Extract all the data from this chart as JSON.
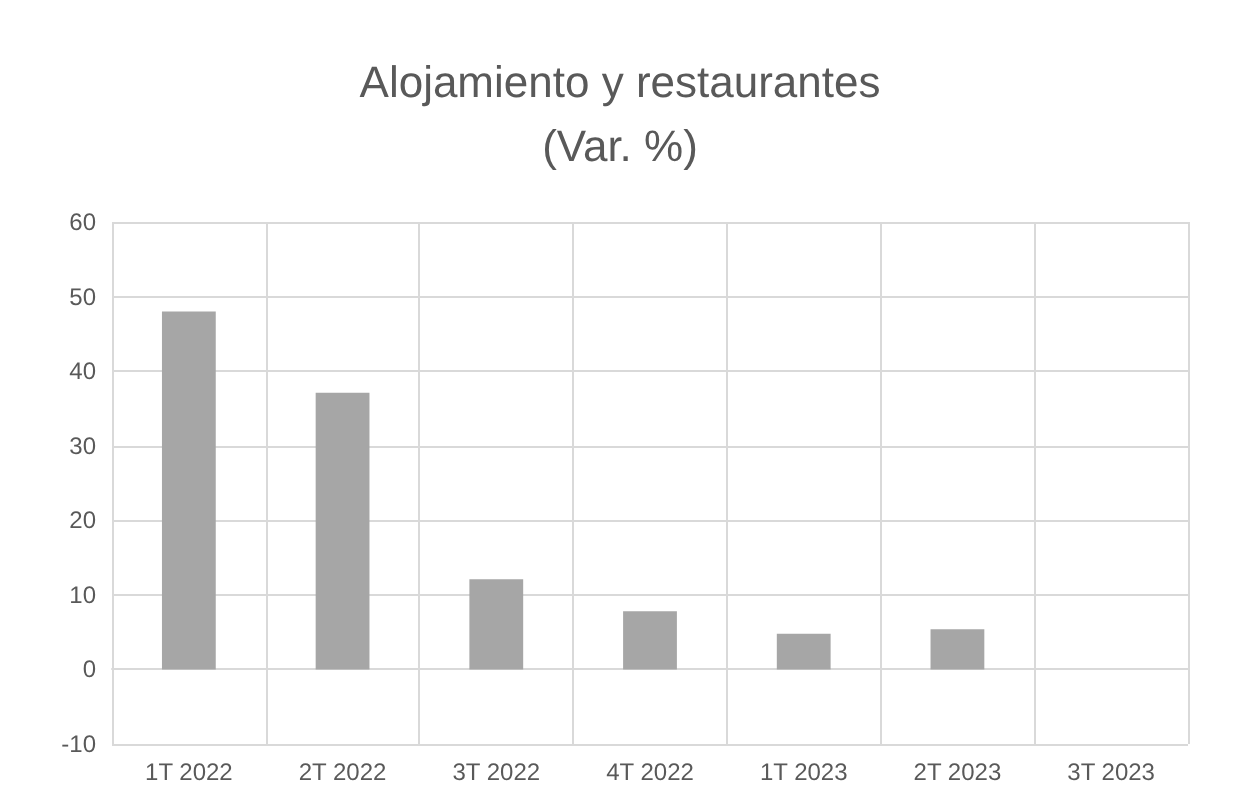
{
  "chart_data": {
    "type": "bar",
    "title": "Alojamiento y restaurantes\n(Var. %)",
    "categories": [
      "1T 2022",
      "2T 2022",
      "3T 2022",
      "4T 2022",
      "1T 2023",
      "2T 2023",
      "3T 2023"
    ],
    "values": [
      48,
      37.1,
      12.1,
      7.8,
      4.8,
      5.4,
      null
    ],
    "color": "#a6a6a6",
    "ylim": [
      -10,
      60
    ],
    "yticks": [
      -10,
      0,
      10,
      20,
      30,
      40,
      50,
      60
    ],
    "grid": true
  }
}
